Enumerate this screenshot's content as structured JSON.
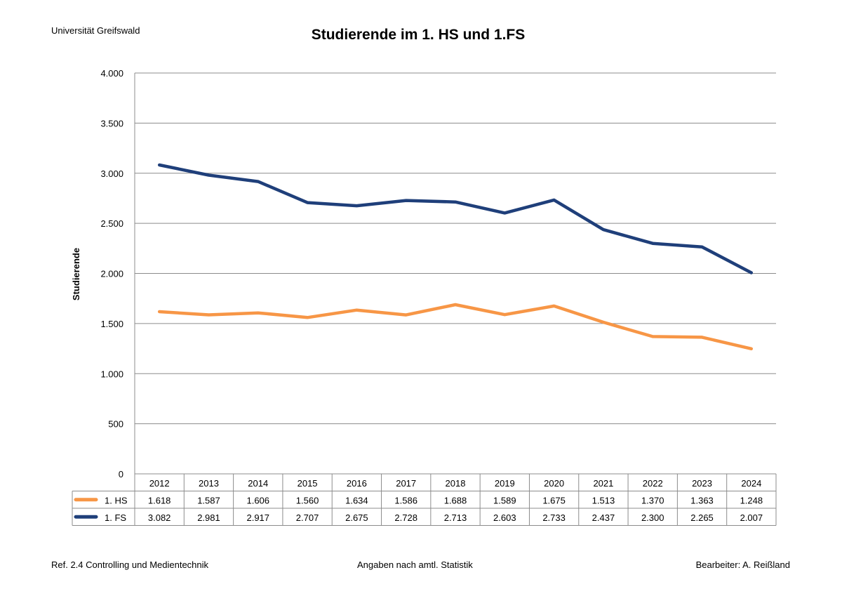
{
  "header": {
    "institution": "Universität Greifswald"
  },
  "footer": {
    "left": "Ref. 2.4 Controlling und Medientechnik",
    "center": "Angaben nach amtl. Statistik",
    "right": "Bearbeiter: A. Reißland"
  },
  "chart_data": {
    "type": "line",
    "title": "Studierende im 1. HS und 1.FS",
    "ylabel": "Studierende",
    "xlabel": "",
    "ylim": [
      0,
      4000
    ],
    "yticks": [
      0,
      500,
      1000,
      1500,
      2000,
      2500,
      3000,
      3500,
      4000
    ],
    "ytick_labels": [
      "0",
      "500",
      "1.000",
      "1.500",
      "2.000",
      "2.500",
      "3.000",
      "3.500",
      "4.000"
    ],
    "grid": true,
    "legend": "data-table",
    "categories": [
      "2012",
      "2013",
      "2014",
      "2015",
      "2016",
      "2017",
      "2018",
      "2019",
      "2020",
      "2021",
      "2022",
      "2023",
      "2024"
    ],
    "series": [
      {
        "name": "1. HS",
        "color": "#f79646",
        "values": [
          1618,
          1587,
          1606,
          1560,
          1634,
          1586,
          1688,
          1589,
          1675,
          1513,
          1370,
          1363,
          1248
        ],
        "labels": [
          "1.618",
          "1.587",
          "1.606",
          "1.560",
          "1.634",
          "1.586",
          "1.688",
          "1.589",
          "1.675",
          "1.513",
          "1.370",
          "1.363",
          "1.248"
        ]
      },
      {
        "name": "1. FS",
        "color": "#1f3f7a",
        "values": [
          3082,
          2981,
          2917,
          2707,
          2675,
          2728,
          2713,
          2603,
          2733,
          2437,
          2300,
          2265,
          2007
        ],
        "labels": [
          "3.082",
          "2.981",
          "2.917",
          "2.707",
          "2.675",
          "2.728",
          "2.713",
          "2.603",
          "2.733",
          "2.437",
          "2.300",
          "2.265",
          "2.007"
        ]
      }
    ]
  }
}
